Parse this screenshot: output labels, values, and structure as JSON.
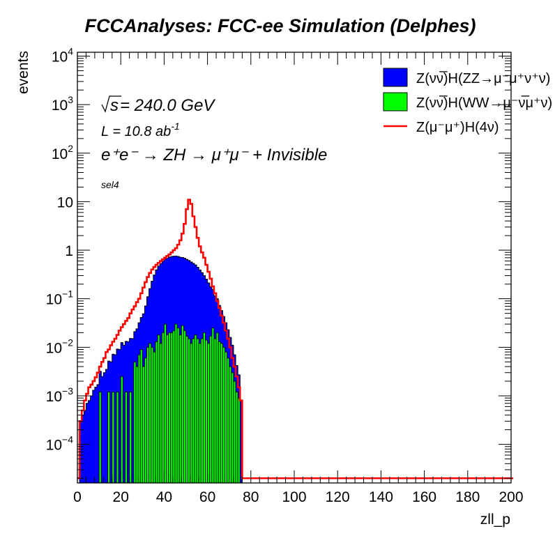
{
  "chart_data": {
    "type": "histogram",
    "title": "FCCAnalyses: FCC-ee Simulation (Delphes)",
    "xlabel": "zll_p",
    "ylabel": "events",
    "xlim": [
      0,
      200
    ],
    "ylim": [
      1.6e-05,
      12000
    ],
    "yscale": "log",
    "bin_width": 1,
    "x_ticks": [
      0,
      20,
      40,
      60,
      80,
      100,
      120,
      140,
      160,
      180,
      200
    ],
    "y_ticks": [
      {
        "value": 0.0001,
        "base": "10",
        "exp": "−4"
      },
      {
        "value": 0.001,
        "base": "10",
        "exp": "−3"
      },
      {
        "value": 0.01,
        "base": "10",
        "exp": "−2"
      },
      {
        "value": 0.1,
        "base": "10",
        "exp": "−1"
      },
      {
        "value": 1,
        "base": "1",
        "exp": ""
      },
      {
        "value": 10,
        "base": "10",
        "exp": ""
      },
      {
        "value": 100,
        "base": "10",
        "exp": "2"
      },
      {
        "value": 1000,
        "base": "10",
        "exp": "3"
      },
      {
        "value": 10000,
        "base": "10",
        "exp": "4"
      }
    ],
    "annotations": {
      "sqrt_s": "s",
      "energy": " = 240.0 GeV",
      "lumi": "L = 10.8 ab",
      "lumi_exp": "-1",
      "process": "e⁺e⁻ → ZH → μ⁺μ⁻ + Invisible",
      "selection": "sel4"
    },
    "legend_position": "top-right",
    "series": [
      {
        "name": "Z(νν̅)H(ZZ→μ⁻μ⁺ν⁺ν)",
        "style": "stacked-fill",
        "color": "#0000ff",
        "points": [
          [
            1,
            0.0003
          ],
          [
            2,
            0.0004
          ],
          [
            3,
            0.0005
          ],
          [
            4,
            0.0007
          ],
          [
            5,
            0.0008
          ],
          [
            6,
            0.001
          ],
          [
            7,
            0.0013
          ],
          [
            8,
            0.0015
          ],
          [
            9,
            0.0017
          ],
          [
            10,
            0.002
          ],
          [
            11,
            0.0025
          ],
          [
            12,
            0.003
          ],
          [
            13,
            0.0035
          ],
          [
            14,
            0.004
          ],
          [
            15,
            0.005
          ],
          [
            16,
            0.006
          ],
          [
            17,
            0.007
          ],
          [
            18,
            0.008
          ],
          [
            19,
            0.009
          ],
          [
            20,
            0.01
          ],
          [
            21,
            0.011
          ],
          [
            22,
            0.012
          ],
          [
            23,
            0.013
          ],
          [
            24,
            0.014
          ],
          [
            25,
            0.015
          ],
          [
            26,
            0.016
          ],
          [
            27,
            0.02
          ],
          [
            28,
            0.025
          ],
          [
            29,
            0.032
          ],
          [
            30,
            0.045
          ],
          [
            31,
            0.065
          ],
          [
            32,
            0.1
          ],
          [
            33,
            0.15
          ],
          [
            34,
            0.22
          ],
          [
            35,
            0.3
          ],
          [
            36,
            0.38
          ],
          [
            37,
            0.45
          ],
          [
            38,
            0.52
          ],
          [
            39,
            0.58
          ],
          [
            40,
            0.63
          ],
          [
            41,
            0.67
          ],
          [
            42,
            0.7
          ],
          [
            43,
            0.72
          ],
          [
            44,
            0.73
          ],
          [
            45,
            0.73
          ],
          [
            46,
            0.72
          ],
          [
            47,
            0.7
          ],
          [
            48,
            0.68
          ],
          [
            49,
            0.66
          ],
          [
            50,
            0.63
          ],
          [
            51,
            0.6
          ],
          [
            52,
            0.56
          ],
          [
            53,
            0.52
          ],
          [
            54,
            0.48
          ],
          [
            55,
            0.43
          ],
          [
            56,
            0.38
          ],
          [
            57,
            0.33
          ],
          [
            58,
            0.28
          ],
          [
            59,
            0.24
          ],
          [
            60,
            0.2
          ],
          [
            61,
            0.16
          ],
          [
            62,
            0.13
          ],
          [
            63,
            0.1
          ],
          [
            64,
            0.08
          ],
          [
            65,
            0.06
          ],
          [
            66,
            0.045
          ],
          [
            67,
            0.033
          ],
          [
            68,
            0.024
          ],
          [
            69,
            0.017
          ],
          [
            70,
            0.012
          ],
          [
            71,
            0.008
          ],
          [
            72,
            0.005
          ],
          [
            73,
            0.003
          ],
          [
            74,
            0.0018
          ],
          [
            75,
            0.0008
          ]
        ]
      },
      {
        "name": "Z(νν̅)H(WW→μ⁻ν̅μ⁺ν)",
        "style": "stacked-fill",
        "color": "#00ff00",
        "points": [
          [
            10,
            0.0012
          ],
          [
            14,
            0.0012
          ],
          [
            16,
            0.0012
          ],
          [
            18,
            0.0012
          ],
          [
            20,
            0.0025
          ],
          [
            22,
            0.0012
          ],
          [
            24,
            0.0012
          ],
          [
            26,
            0.005
          ],
          [
            27,
            0.004
          ],
          [
            28,
            0.007
          ],
          [
            29,
            0.009
          ],
          [
            30,
            0.004
          ],
          [
            31,
            0.006
          ],
          [
            32,
            0.01
          ],
          [
            33,
            0.012
          ],
          [
            34,
            0.01
          ],
          [
            35,
            0.008
          ],
          [
            36,
            0.013
          ],
          [
            37,
            0.018
          ],
          [
            38,
            0.012
          ],
          [
            39,
            0.02
          ],
          [
            40,
            0.03
          ],
          [
            41,
            0.018
          ],
          [
            42,
            0.02
          ],
          [
            43,
            0.02
          ],
          [
            44,
            0.022
          ],
          [
            45,
            0.03
          ],
          [
            46,
            0.025
          ],
          [
            47,
            0.018
          ],
          [
            48,
            0.028
          ],
          [
            49,
            0.022
          ],
          [
            50,
            0.017
          ],
          [
            51,
            0.015
          ],
          [
            52,
            0.012
          ],
          [
            53,
            0.015
          ],
          [
            54,
            0.018
          ],
          [
            55,
            0.015
          ],
          [
            56,
            0.012
          ],
          [
            57,
            0.015
          ],
          [
            58,
            0.02
          ],
          [
            59,
            0.014
          ],
          [
            60,
            0.012
          ],
          [
            61,
            0.017
          ],
          [
            62,
            0.025
          ],
          [
            63,
            0.015
          ],
          [
            64,
            0.02
          ],
          [
            65,
            0.013
          ],
          [
            66,
            0.012
          ],
          [
            67,
            0.01
          ],
          [
            68,
            0.008
          ],
          [
            69,
            0.006
          ],
          [
            70,
            0.004
          ],
          [
            71,
            0.003
          ],
          [
            72,
            0.002
          ],
          [
            73,
            0.0012
          ],
          [
            74,
            0.0009
          ]
        ]
      },
      {
        "name": "Z(μ⁻μ⁺)H(4ν)",
        "style": "line",
        "color": "#ff0000",
        "points": [
          [
            0,
            2e-05
          ],
          [
            1,
            0.0003
          ],
          [
            2,
            0.0005
          ],
          [
            3,
            0.0008
          ],
          [
            4,
            0.0011
          ],
          [
            5,
            0.0015
          ],
          [
            6,
            0.0017
          ],
          [
            7,
            0.002
          ],
          [
            8,
            0.0024
          ],
          [
            9,
            0.003
          ],
          [
            10,
            0.004
          ],
          [
            11,
            0.005
          ],
          [
            12,
            0.006
          ],
          [
            13,
            0.008
          ],
          [
            14,
            0.009
          ],
          [
            15,
            0.011
          ],
          [
            16,
            0.013
          ],
          [
            17,
            0.015
          ],
          [
            18,
            0.018
          ],
          [
            19,
            0.022
          ],
          [
            20,
            0.026
          ],
          [
            21,
            0.03
          ],
          [
            22,
            0.035
          ],
          [
            23,
            0.04
          ],
          [
            24,
            0.05
          ],
          [
            25,
            0.06
          ],
          [
            26,
            0.07
          ],
          [
            27,
            0.085
          ],
          [
            28,
            0.1
          ],
          [
            29,
            0.13
          ],
          [
            30,
            0.17
          ],
          [
            31,
            0.22
          ],
          [
            32,
            0.28
          ],
          [
            33,
            0.34
          ],
          [
            34,
            0.4
          ],
          [
            35,
            0.45
          ],
          [
            36,
            0.5
          ],
          [
            37,
            0.55
          ],
          [
            38,
            0.6
          ],
          [
            39,
            0.65
          ],
          [
            40,
            0.7
          ],
          [
            41,
            0.76
          ],
          [
            42,
            0.82
          ],
          [
            43,
            0.9
          ],
          [
            44,
            1.0
          ],
          [
            45,
            1.1
          ],
          [
            46,
            1.3
          ],
          [
            47,
            1.6
          ],
          [
            48,
            2.2
          ],
          [
            49,
            3.5
          ],
          [
            50,
            7
          ],
          [
            51,
            11
          ],
          [
            52,
            9
          ],
          [
            53,
            5
          ],
          [
            54,
            3
          ],
          [
            55,
            1.8
          ],
          [
            56,
            1.2
          ],
          [
            57,
            0.9
          ],
          [
            58,
            0.7
          ],
          [
            59,
            0.5
          ],
          [
            60,
            0.36
          ],
          [
            61,
            0.26
          ],
          [
            62,
            0.18
          ],
          [
            63,
            0.13
          ],
          [
            64,
            0.09
          ],
          [
            65,
            0.065
          ],
          [
            66,
            0.045
          ],
          [
            67,
            0.032
          ],
          [
            68,
            0.022
          ],
          [
            69,
            0.015
          ],
          [
            70,
            0.01
          ],
          [
            71,
            0.006
          ],
          [
            72,
            0.004
          ],
          [
            73,
            0.0025
          ],
          [
            74,
            0.0015
          ],
          [
            75,
            0.0008
          ],
          [
            76,
            2e-05
          ],
          [
            200,
            2e-05
          ]
        ]
      }
    ]
  }
}
